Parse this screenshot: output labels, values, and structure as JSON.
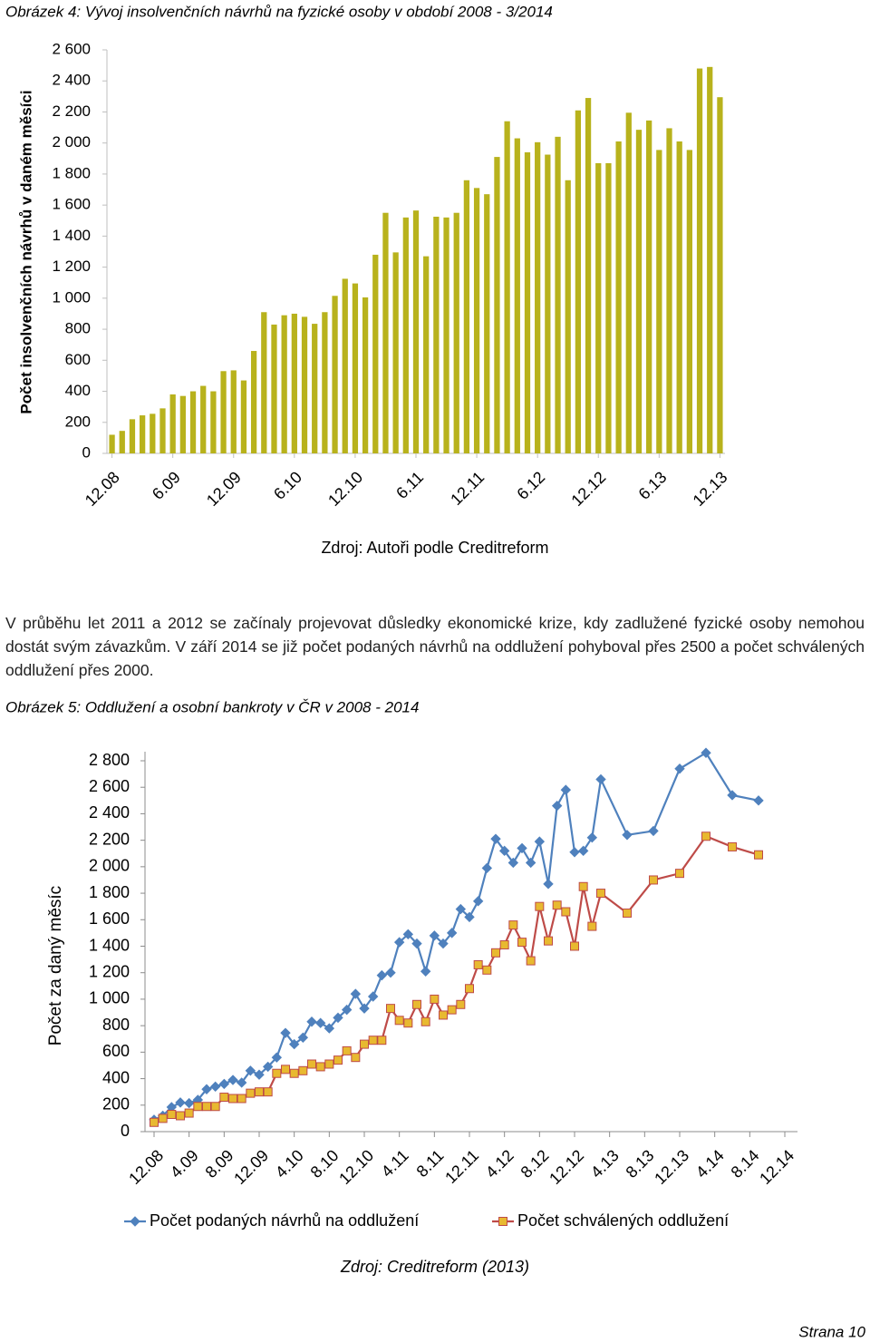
{
  "chart_data": [
    {
      "type": "bar",
      "title": "Obrázek 4: Vývoj insolvenčních návrhů na fyzické osoby v období 2008 - 3/2014",
      "y_label": "Počet insolvenčních návrhů v daném měsíci",
      "source": "Zdroj: Autoři podle Creditreform",
      "categories": [
        "12.08",
        null,
        null,
        null,
        null,
        null,
        "6.09",
        null,
        null,
        null,
        null,
        null,
        "12.09",
        null,
        null,
        null,
        null,
        null,
        "6.10",
        null,
        null,
        null,
        null,
        null,
        "12.10",
        null,
        null,
        null,
        null,
        null,
        "6.11",
        null,
        null,
        null,
        null,
        null,
        "12.11",
        null,
        null,
        null,
        null,
        null,
        "6.12",
        null,
        null,
        null,
        null,
        null,
        "12.12",
        null,
        null,
        null,
        null,
        null,
        "6.13",
        null,
        null,
        null,
        null,
        null,
        "12.13"
      ],
      "values": [
        120,
        145,
        220,
        245,
        255,
        290,
        380,
        370,
        400,
        435,
        400,
        530,
        535,
        470,
        660,
        910,
        830,
        890,
        900,
        880,
        835,
        910,
        1015,
        1125,
        1095,
        1005,
        1280,
        1550,
        1295,
        1520,
        1565,
        1270,
        1525,
        1520,
        1550,
        1760,
        1710,
        1670,
        1910,
        2140,
        2030,
        1940,
        2005,
        1925,
        2040,
        1760,
        2210,
        2290,
        1870,
        1870,
        2010,
        2195,
        2085,
        2145,
        1955,
        2095,
        2010,
        1955,
        2480,
        2490,
        2295
      ],
      "color": "#b8b21c",
      "ylim": [
        0,
        2600
      ],
      "yticks": [
        0,
        200,
        400,
        600,
        800,
        {
          "value": 1000,
          "label": "1 000"
        },
        {
          "value": 1200,
          "label": "1 200"
        },
        {
          "value": 1400,
          "label": "1 400"
        },
        {
          "value": 1600,
          "label": "1 600"
        },
        {
          "value": 1800,
          "label": "1 800"
        },
        {
          "value": 2000,
          "label": "2 000"
        },
        {
          "value": 2200,
          "label": "2 200"
        },
        {
          "value": 2400,
          "label": "2 400"
        },
        {
          "value": 2600,
          "label": "2 600"
        }
      ],
      "grid": false
    },
    {
      "type": "line",
      "title": "Obrázek 5: Oddlužení a osobní bankroty v ČR v 2008 - 2014",
      "y_label": "Počet za daný měsíc",
      "source": "Zdroj: Creditreform (2013)",
      "x": [
        "12.08",
        "1.09",
        "2.09",
        "3.09",
        "4.09",
        "5.09",
        "6.09",
        "7.09",
        "8.09",
        "9.09",
        "10.09",
        "11.09",
        "12.09",
        "1.10",
        "2.10",
        "3.10",
        "4.10",
        "5.10",
        "6.10",
        "7.10",
        "8.10",
        "9.10",
        "10.10",
        "11.10",
        "12.10",
        "1.11",
        "2.11",
        "3.11",
        "4.11",
        "5.11",
        "6.11",
        "7.11",
        "8.11",
        "9.11",
        "10.11",
        "11.11",
        "12.11",
        "1.12",
        "2.12",
        "3.12",
        "4.12",
        "5.12",
        "6.12",
        "7.12",
        "8.12",
        "9.12",
        "10.12",
        "11.12",
        "12.12",
        "1.13",
        "2.13",
        "3.13",
        "6.13",
        "9.13",
        "12.13",
        "3.14",
        "6.14",
        "9.14"
      ],
      "series": [
        {
          "name": "Počet podaných návrhů na oddlužení",
          "color": "#4f81bd",
          "marker": "diamond",
          "marker_color": "#4f81bd",
          "values": [
            90,
            120,
            185,
            220,
            215,
            240,
            320,
            340,
            360,
            390,
            370,
            460,
            430,
            490,
            560,
            745,
            660,
            710,
            830,
            820,
            780,
            860,
            920,
            1040,
            930,
            1020,
            1180,
            1200,
            1430,
            1490,
            1420,
            1210,
            1480,
            1420,
            1500,
            1680,
            1620,
            1740,
            1990,
            2210,
            2120,
            2030,
            2140,
            2030,
            2190,
            1870,
            2460,
            2580,
            2110,
            2120,
            2220,
            2660,
            2240,
            2270,
            2740,
            2860,
            2540,
            2500
          ]
        },
        {
          "name": "Počet schválených oddlužení",
          "color": "#be4b48",
          "marker": "square",
          "marker_color": "#e8b930",
          "values": [
            70,
            100,
            130,
            120,
            140,
            190,
            190,
            190,
            260,
            250,
            250,
            290,
            300,
            300,
            440,
            470,
            440,
            460,
            510,
            490,
            510,
            540,
            610,
            560,
            660,
            690,
            690,
            930,
            840,
            820,
            960,
            830,
            1000,
            880,
            920,
            960,
            1080,
            1260,
            1220,
            1350,
            1410,
            1560,
            1430,
            1290,
            1700,
            1440,
            1710,
            1660,
            1400,
            1850,
            1550,
            1800,
            1650,
            1900,
            1950,
            2230,
            2150,
            2090
          ]
        }
      ],
      "xlim": [
        "12.08",
        "12.14"
      ],
      "xticks": [
        "12.08",
        "4.09",
        "8.09",
        "12.09",
        "4.10",
        "8.10",
        "12.10",
        "4.11",
        "8.11",
        "12.11",
        "4.12",
        "8.12",
        "12.12",
        "4.13",
        "8.13",
        "12.13",
        "4.14",
        "8.14",
        "12.14"
      ],
      "ylim": [
        0,
        2800
      ],
      "yticks": [
        0,
        200,
        400,
        600,
        800,
        {
          "value": 1000,
          "label": "1 000"
        },
        {
          "value": 1200,
          "label": "1 200"
        },
        {
          "value": 1400,
          "label": "1 400"
        },
        {
          "value": 1600,
          "label": "1 600"
        },
        {
          "value": 1800,
          "label": "1 800"
        },
        {
          "value": 2000,
          "label": "2 000"
        },
        {
          "value": 2200,
          "label": "2 200"
        },
        {
          "value": 2400,
          "label": "2 400"
        },
        {
          "value": 2600,
          "label": "2 600"
        },
        {
          "value": 2800,
          "label": "2 800"
        }
      ],
      "grid": false,
      "legend": "bottom"
    }
  ],
  "paragraph": "V průběhu let 2011 a 2012 se začínaly projevovat důsledky ekonomické krize, kdy zadlužené fyzické osoby nemohou dostát svým závazkům. V září 2014 se již počet podaných návrhů na oddlužení pohyboval přes 2500 a počet schválených oddlužení přes 2000.",
  "page_number": "Strana 10"
}
